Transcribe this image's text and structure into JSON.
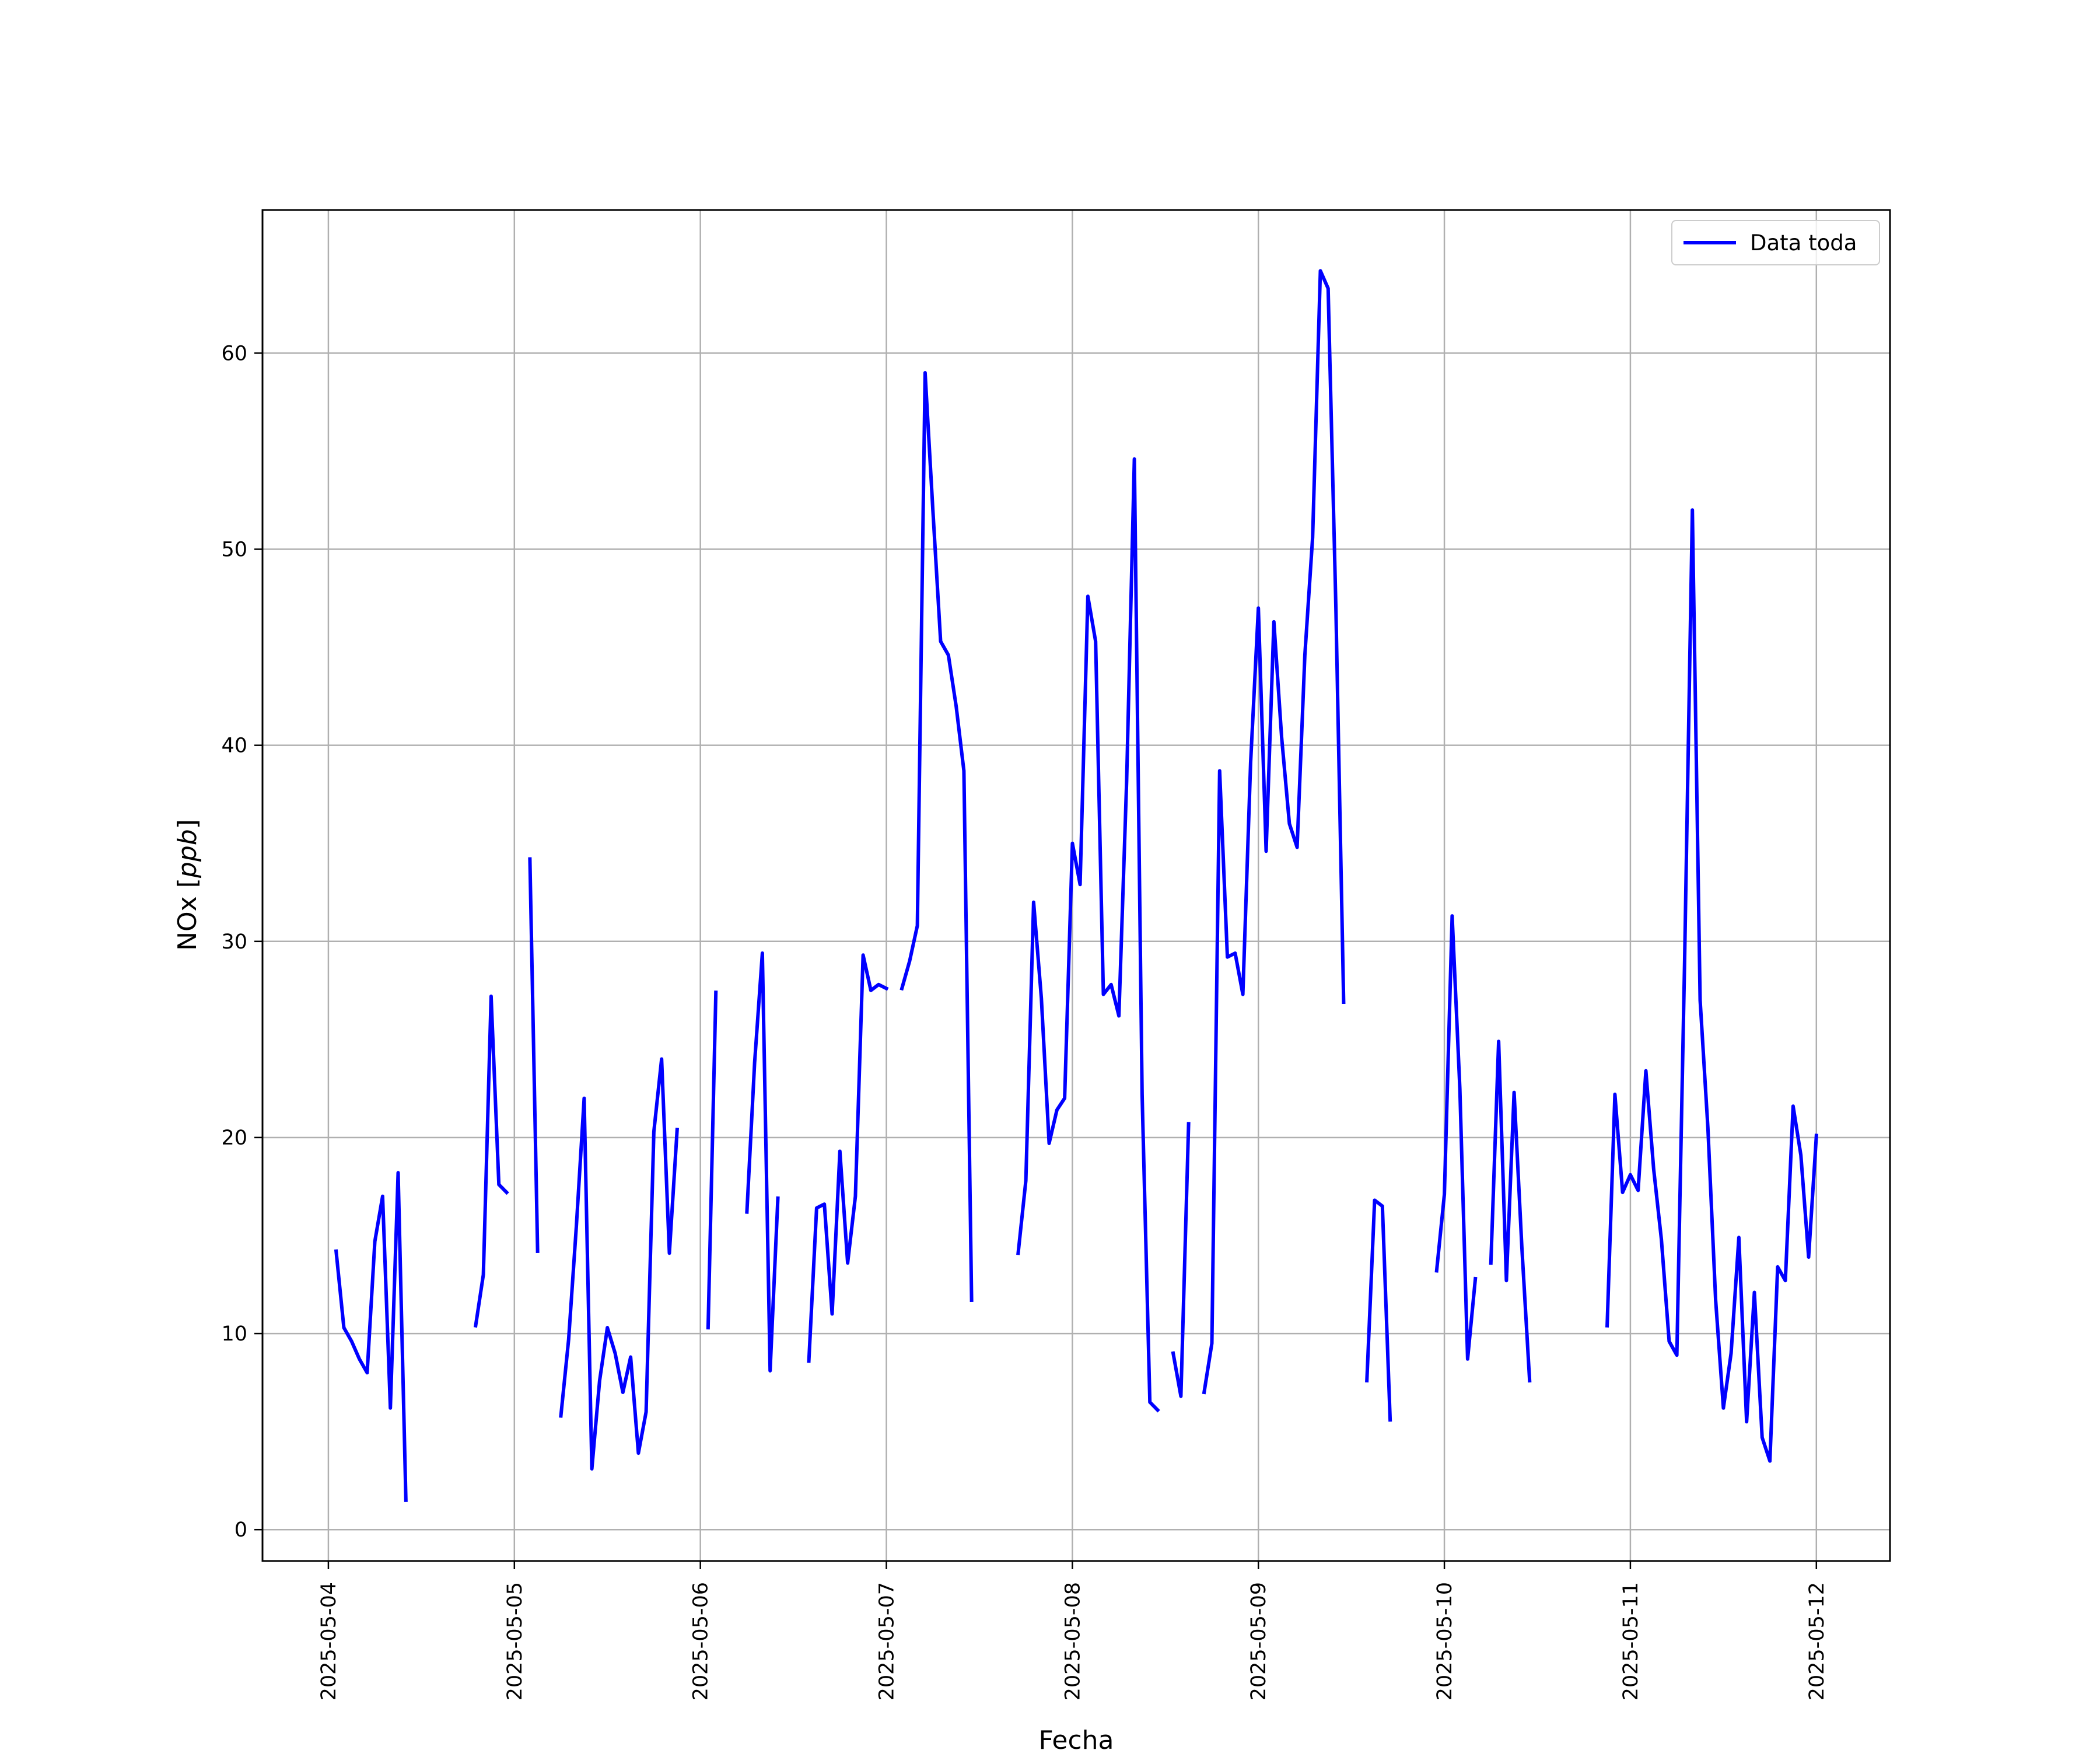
{
  "chart_data": {
    "type": "line",
    "xlabel": "Fecha",
    "ylabel": "NOx [ppb]",
    "ylabel_parts": {
      "quantity": "NOx ",
      "open": "[",
      "unit": "ppb",
      "close": "]"
    },
    "x_ticks": [
      "2025-05-04",
      "2025-05-05",
      "2025-05-06",
      "2025-05-07",
      "2025-05-08",
      "2025-05-09",
      "2025-05-10",
      "2025-05-11",
      "2025-05-12"
    ],
    "y_ticks": [
      0,
      10,
      20,
      30,
      40,
      50,
      60
    ],
    "xlim": [
      "2025-05-03T15:30",
      "2025-05-12T09:30"
    ],
    "ylim": [
      -1.6,
      67.3
    ],
    "grid": true,
    "legend_position": "top-right",
    "colors": {
      "line": "#0000ff",
      "grid": "#b0b0b0",
      "axes": "#000000"
    },
    "series": [
      {
        "name": "Data toda",
        "segments": [
          [
            [
              "2025-05-04T01:00",
              14.2
            ],
            [
              "2025-05-04T02:00",
              10.3
            ],
            [
              "2025-05-04T03:00",
              9.6
            ],
            [
              "2025-05-04T04:00",
              8.7
            ],
            [
              "2025-05-04T05:00",
              8.0
            ],
            [
              "2025-05-04T06:00",
              14.7
            ],
            [
              "2025-05-04T07:00",
              17.0
            ],
            [
              "2025-05-04T08:00",
              6.2
            ],
            [
              "2025-05-04T09:00",
              18.2
            ],
            [
              "2025-05-04T10:00",
              1.5
            ]
          ],
          [
            [
              "2025-05-04T19:00",
              10.4
            ],
            [
              "2025-05-04T20:00",
              13.0
            ],
            [
              "2025-05-04T21:00",
              27.2
            ],
            [
              "2025-05-04T22:00",
              17.6
            ],
            [
              "2025-05-04T23:00",
              17.2
            ]
          ],
          [
            [
              "2025-05-05T02:00",
              34.2
            ],
            [
              "2025-05-05T03:00",
              14.2
            ]
          ],
          [
            [
              "2025-05-05T06:00",
              5.8
            ],
            [
              "2025-05-05T07:00",
              9.7
            ],
            [
              "2025-05-05T08:00",
              15.5
            ],
            [
              "2025-05-05T09:00",
              22.0
            ],
            [
              "2025-05-05T10:00",
              3.1
            ],
            [
              "2025-05-05T11:00",
              7.6
            ],
            [
              "2025-05-05T12:00",
              10.3
            ],
            [
              "2025-05-05T13:00",
              9.0
            ],
            [
              "2025-05-05T14:00",
              7.0
            ],
            [
              "2025-05-05T15:00",
              8.8
            ],
            [
              "2025-05-05T16:00",
              3.9
            ],
            [
              "2025-05-05T17:00",
              6.0
            ],
            [
              "2025-05-05T18:00",
              20.3
            ],
            [
              "2025-05-05T19:00",
              24.0
            ],
            [
              "2025-05-05T20:00",
              14.1
            ],
            [
              "2025-05-05T21:00",
              20.4
            ]
          ],
          [
            [
              "2025-05-06T01:00",
              10.3
            ],
            [
              "2025-05-06T02:00",
              27.4
            ]
          ],
          [
            [
              "2025-05-06T06:00",
              16.2
            ],
            [
              "2025-05-06T07:00",
              23.8
            ],
            [
              "2025-05-06T08:00",
              29.4
            ],
            [
              "2025-05-06T09:00",
              8.1
            ],
            [
              "2025-05-06T10:00",
              16.9
            ]
          ],
          [
            [
              "2025-05-06T14:00",
              8.6
            ],
            [
              "2025-05-06T15:00",
              16.4
            ],
            [
              "2025-05-06T16:00",
              16.6
            ],
            [
              "2025-05-06T17:00",
              11.0
            ],
            [
              "2025-05-06T18:00",
              19.3
            ],
            [
              "2025-05-06T19:00",
              13.6
            ],
            [
              "2025-05-06T20:00",
              17.0
            ],
            [
              "2025-05-06T21:00",
              29.3
            ],
            [
              "2025-05-06T22:00",
              27.5
            ],
            [
              "2025-05-06T23:00",
              27.8
            ],
            [
              "2025-05-07T00:00",
              27.6
            ]
          ],
          [
            [
              "2025-05-07T02:00",
              27.6
            ],
            [
              "2025-05-07T03:00",
              29.0
            ],
            [
              "2025-05-07T04:00",
              30.8
            ],
            [
              "2025-05-07T05:00",
              59.0
            ],
            [
              "2025-05-07T06:00",
              52.0
            ],
            [
              "2025-05-07T07:00",
              45.3
            ],
            [
              "2025-05-07T08:00",
              44.6
            ],
            [
              "2025-05-07T09:00",
              42.0
            ],
            [
              "2025-05-07T10:00",
              38.7
            ],
            [
              "2025-05-07T11:00",
              11.7
            ]
          ],
          [
            [
              "2025-05-07T17:00",
              14.1
            ],
            [
              "2025-05-07T18:00",
              17.8
            ],
            [
              "2025-05-07T19:00",
              32.0
            ],
            [
              "2025-05-07T20:00",
              27.1
            ],
            [
              "2025-05-07T21:00",
              19.7
            ],
            [
              "2025-05-07T22:00",
              21.4
            ],
            [
              "2025-05-07T23:00",
              22.0
            ],
            [
              "2025-05-08T00:00",
              35.0
            ],
            [
              "2025-05-08T01:00",
              32.9
            ],
            [
              "2025-05-08T02:00",
              47.6
            ],
            [
              "2025-05-08T03:00",
              45.3
            ],
            [
              "2025-05-08T04:00",
              27.3
            ],
            [
              "2025-05-08T05:00",
              27.8
            ],
            [
              "2025-05-08T06:00",
              26.2
            ],
            [
              "2025-05-08T07:00",
              38.2
            ],
            [
              "2025-05-08T08:00",
              54.6
            ],
            [
              "2025-05-08T09:00",
              22.2
            ],
            [
              "2025-05-08T10:00",
              6.5
            ],
            [
              "2025-05-08T11:00",
              6.1
            ]
          ],
          [
            [
              "2025-05-08T13:00",
              9.0
            ],
            [
              "2025-05-08T14:00",
              6.8
            ],
            [
              "2025-05-08T15:00",
              20.7
            ]
          ],
          [
            [
              "2025-05-08T17:00",
              7.0
            ],
            [
              "2025-05-08T18:00",
              9.5
            ],
            [
              "2025-05-08T19:00",
              38.7
            ],
            [
              "2025-05-08T20:00",
              29.2
            ],
            [
              "2025-05-08T21:00",
              29.4
            ],
            [
              "2025-05-08T22:00",
              27.3
            ],
            [
              "2025-05-08T23:00",
              39.1
            ],
            [
              "2025-05-09T00:00",
              47.0
            ],
            [
              "2025-05-09T01:00",
              34.6
            ],
            [
              "2025-05-09T02:00",
              46.3
            ],
            [
              "2025-05-09T03:00",
              40.4
            ],
            [
              "2025-05-09T04:00",
              36.0
            ],
            [
              "2025-05-09T05:00",
              34.8
            ],
            [
              "2025-05-09T06:00",
              44.6
            ],
            [
              "2025-05-09T07:00",
              50.6
            ],
            [
              "2025-05-09T08:00",
              64.2
            ],
            [
              "2025-05-09T09:00",
              63.3
            ],
            [
              "2025-05-09T10:00",
              47.0
            ],
            [
              "2025-05-09T11:00",
              26.9
            ]
          ],
          [
            [
              "2025-05-09T14:00",
              7.6
            ],
            [
              "2025-05-09T15:00",
              16.8
            ],
            [
              "2025-05-09T16:00",
              16.5
            ],
            [
              "2025-05-09T17:00",
              5.6
            ]
          ],
          [
            [
              "2025-05-09T23:00",
              13.2
            ],
            [
              "2025-05-10T00:00",
              17.1
            ],
            [
              "2025-05-10T01:00",
              31.3
            ],
            [
              "2025-05-10T02:00",
              22.5
            ],
            [
              "2025-05-10T03:00",
              8.7
            ],
            [
              "2025-05-10T04:00",
              12.8
            ]
          ],
          [
            [
              "2025-05-10T06:00",
              13.6
            ],
            [
              "2025-05-10T07:00",
              24.9
            ],
            [
              "2025-05-10T08:00",
              12.7
            ],
            [
              "2025-05-10T09:00",
              22.3
            ],
            [
              "2025-05-10T10:00",
              14.4
            ],
            [
              "2025-05-10T11:00",
              7.6
            ]
          ],
          [
            [
              "2025-05-10T21:00",
              10.4
            ],
            [
              "2025-05-10T22:00",
              22.2
            ],
            [
              "2025-05-10T23:00",
              17.2
            ],
            [
              "2025-05-11T00:00",
              18.1
            ],
            [
              "2025-05-11T01:00",
              17.3
            ],
            [
              "2025-05-11T02:00",
              23.4
            ],
            [
              "2025-05-11T03:00",
              18.4
            ],
            [
              "2025-05-11T04:00",
              14.8
            ],
            [
              "2025-05-11T05:00",
              9.6
            ],
            [
              "2025-05-11T06:00",
              8.9
            ],
            [
              "2025-05-11T07:00",
              29.0
            ],
            [
              "2025-05-11T08:00",
              52.0
            ],
            [
              "2025-05-11T09:00",
              27.0
            ],
            [
              "2025-05-11T10:00",
              20.5
            ],
            [
              "2025-05-11T11:00",
              11.7
            ],
            [
              "2025-05-11T12:00",
              6.2
            ],
            [
              "2025-05-11T13:00",
              9.0
            ],
            [
              "2025-05-11T14:00",
              14.9
            ],
            [
              "2025-05-11T15:00",
              5.5
            ],
            [
              "2025-05-11T16:00",
              12.1
            ],
            [
              "2025-05-11T17:00",
              4.7
            ],
            [
              "2025-05-11T18:00",
              3.5
            ],
            [
              "2025-05-11T19:00",
              13.4
            ],
            [
              "2025-05-11T20:00",
              12.7
            ],
            [
              "2025-05-11T21:00",
              21.6
            ],
            [
              "2025-05-11T22:00",
              19.1
            ],
            [
              "2025-05-11T23:00",
              13.9
            ],
            [
              "2025-05-12T00:00",
              20.1
            ]
          ]
        ]
      }
    ]
  }
}
